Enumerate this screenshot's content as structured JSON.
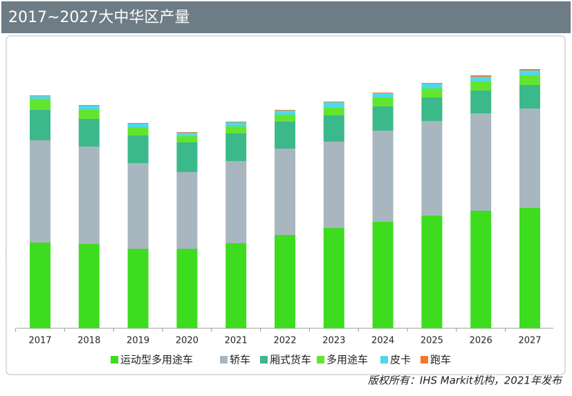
{
  "chart_data": {
    "type": "stacked_bar",
    "title": "2017~2027大中华区产量",
    "source": "版权所有：IHS Markit机构，2021年发布",
    "categories": [
      "2017",
      "2018",
      "2019",
      "2020",
      "2021",
      "2022",
      "2023",
      "2024",
      "2025",
      "2026",
      "2027"
    ],
    "series": [
      {
        "name": "运动型多用途车",
        "color": "#3ddc1f",
        "values": [
          124,
          122,
          115,
          115,
          123,
          135,
          145,
          154,
          163,
          170,
          174
        ]
      },
      {
        "name": "轿车",
        "color": "#a8b6bf",
        "values": [
          148,
          141,
          124,
          111,
          119,
          125,
          125,
          132,
          137,
          141,
          144
        ]
      },
      {
        "name": "厢式货车",
        "color": "#3cb98a",
        "values": [
          44,
          40,
          40,
          43,
          40,
          39,
          38,
          35,
          34,
          33,
          34
        ]
      },
      {
        "name": "多用途车",
        "color": "#63e52f",
        "values": [
          16,
          13,
          12,
          9,
          10,
          10,
          11,
          13,
          13,
          13,
          14
        ]
      },
      {
        "name": "皮卡",
        "color": "#4fd8ea",
        "values": [
          4,
          6,
          5,
          5,
          6,
          6,
          8,
          6,
          7,
          7,
          7
        ]
      },
      {
        "name": "跑车",
        "color": "#f07a2a",
        "values": [
          1,
          1,
          1,
          1,
          1,
          1,
          1,
          1,
          1,
          2,
          2
        ]
      }
    ]
  }
}
